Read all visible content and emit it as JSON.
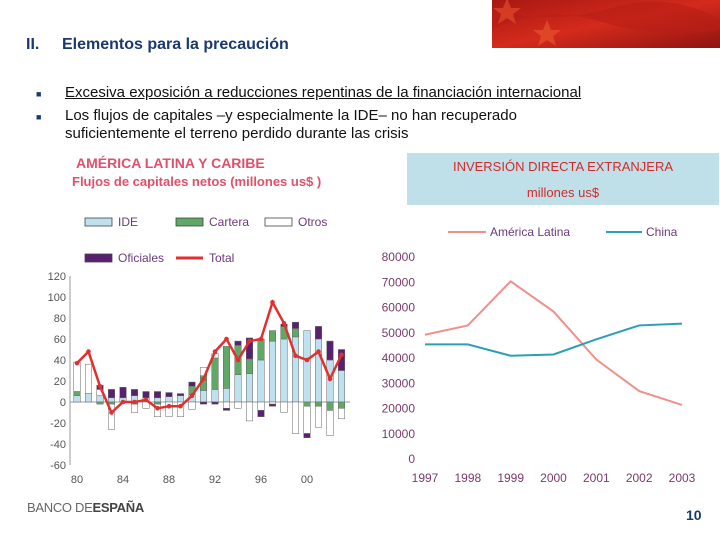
{
  "header": {
    "section_number": "II.",
    "section_title": "Elementos para la precaución"
  },
  "bullets": [
    {
      "underlined": "Excesiva exposición a reducciones repentinas de la financiación internacional"
    },
    {
      "line1": "Los flujos de capitales –y especialmente la IDE– no han recuperado",
      "line2": "suficientemente el terreno perdido durante las crisis"
    }
  ],
  "footer": {
    "logo_light": "BANCO DE",
    "logo_bold": "ESPAÑA",
    "page_number": "10"
  },
  "colors": {
    "title": "#1a3a6e",
    "accent": "#e0506a",
    "ide": "#bfe0ee",
    "cartera": "#5fa866",
    "otros": "#ffffff",
    "oficiales": "#5a2070",
    "total": "#e03030",
    "latam": "#f0908a",
    "china": "#2aa0b0"
  },
  "chart_data": [
    {
      "type": "bar",
      "title": "AMÉRICA LATINA Y CARIBE",
      "subtitle": "Flujos de capitales netos (millones us$ )",
      "legend": [
        "IDE",
        "Cartera",
        "Otros",
        "Oficiales",
        "Total"
      ],
      "ylim": [
        -60,
        120
      ],
      "yticks": [
        -60,
        -40,
        -20,
        0,
        20,
        40,
        60,
        80,
        100,
        120
      ],
      "xticks": [
        {
          "label": "80",
          "year": 1980
        },
        {
          "label": "84",
          "year": 1984
        },
        {
          "label": "88",
          "year": 1988
        },
        {
          "label": "92",
          "year": 1992
        },
        {
          "label": "96",
          "year": 1996
        },
        {
          "label": "00",
          "year": 2000
        }
      ],
      "years": [
        1980,
        1981,
        1982,
        1983,
        1984,
        1985,
        1986,
        1987,
        1988,
        1989,
        1990,
        1991,
        1992,
        1993,
        1994,
        1995,
        1996,
        1997,
        1998,
        1999,
        2000,
        2001,
        2002,
        2003
      ],
      "series": [
        {
          "name": "IDE",
          "values": [
            6,
            8,
            6,
            4,
            4,
            6,
            4,
            4,
            5,
            6,
            7,
            11,
            12,
            13,
            26,
            27,
            40,
            58,
            60,
            62,
            68,
            60,
            40,
            30
          ]
        },
        {
          "name": "Cartera",
          "values": [
            4,
            0,
            -2,
            -2,
            0,
            -2,
            0,
            -2,
            0,
            0,
            8,
            14,
            30,
            40,
            28,
            14,
            20,
            10,
            12,
            8,
            -4,
            -4,
            -8,
            -6
          ]
        },
        {
          "name": "Otros",
          "values": [
            28,
            28,
            6,
            -24,
            0,
            -8,
            -6,
            -12,
            -14,
            -14,
            -7,
            8,
            4,
            -6,
            -6,
            -18,
            -8,
            -2,
            -10,
            -30,
            -26,
            -20,
            -24,
            -10
          ]
        },
        {
          "name": "Oficiales",
          "values": [
            0,
            0,
            4,
            8,
            10,
            6,
            6,
            6,
            4,
            2,
            4,
            -2,
            -2,
            -2,
            4,
            20,
            -6,
            -2,
            2,
            6,
            -4,
            12,
            18,
            20
          ]
        },
        {
          "name": "Total",
          "values": [
            37,
            48,
            15,
            -10,
            0,
            0,
            2,
            -6,
            -4,
            -4,
            6,
            22,
            48,
            60,
            40,
            58,
            60,
            95,
            75,
            44,
            40,
            48,
            22,
            45
          ]
        }
      ]
    },
    {
      "type": "line",
      "title": "INVERSIÓN DIRECTA EXTRANJERA",
      "subtitle": "millones us$",
      "categories": [
        "1997",
        "1998",
        "1999",
        "2000",
        "2001",
        "2002",
        "2003"
      ],
      "ylim": [
        0,
        80000
      ],
      "yticks": [
        0,
        10000,
        20000,
        30000,
        40000,
        50000,
        60000,
        70000,
        80000
      ],
      "series": [
        {
          "name": "América Latina",
          "values": [
            48800,
            52500,
            70000,
            58000,
            39000,
            26500,
            21000
          ]
        },
        {
          "name": "China",
          "values": [
            45000,
            45000,
            40500,
            41000,
            47000,
            52500,
            53200
          ]
        }
      ]
    }
  ]
}
